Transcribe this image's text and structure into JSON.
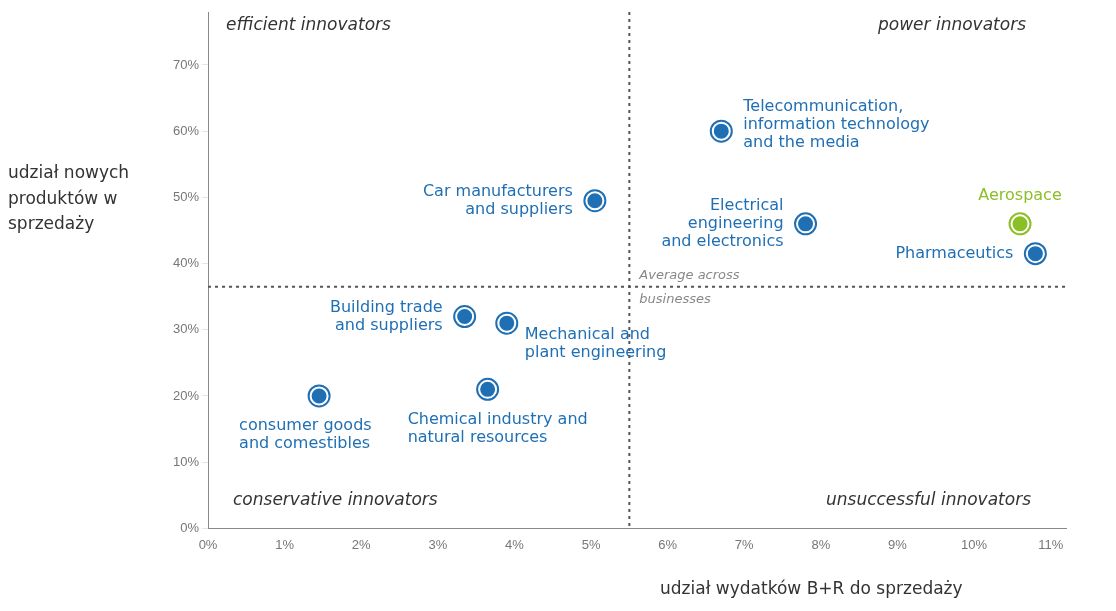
{
  "chart_data": {
    "type": "scatter",
    "xlabel": "udział wydatków B+R do sprzedaży",
    "ylabel": "udział nowych produktów w sprzedaży",
    "xlim": [
      0,
      11.2
    ],
    "ylim": [
      0,
      78
    ],
    "xticks": [
      {
        "value": 0,
        "label": "0%"
      },
      {
        "value": 1,
        "label": "1%"
      },
      {
        "value": 2,
        "label": "2%"
      },
      {
        "value": 3,
        "label": "3%"
      },
      {
        "value": 4,
        "label": "4%"
      },
      {
        "value": 5,
        "label": "5%"
      },
      {
        "value": 6,
        "label": "6%"
      },
      {
        "value": 7,
        "label": "7%"
      },
      {
        "value": 8,
        "label": "8%"
      },
      {
        "value": 9,
        "label": "9%"
      },
      {
        "value": 10,
        "label": "10%"
      },
      {
        "value": 11,
        "label": "11%"
      }
    ],
    "yticks": [
      {
        "value": 0,
        "label": "0%"
      },
      {
        "value": 10,
        "label": "10%"
      },
      {
        "value": 20,
        "label": "20%"
      },
      {
        "value": 30,
        "label": "30%"
      },
      {
        "value": 40,
        "label": "40%"
      },
      {
        "value": 50,
        "label": "50%"
      },
      {
        "value": 60,
        "label": "60%"
      },
      {
        "value": 70,
        "label": "70%"
      }
    ],
    "marker": "circle",
    "grid": false,
    "legend": false,
    "series": [
      {
        "name": "Telecommunication,\ninformation technology\nand the media",
        "color": "#1f6fb5",
        "x": [
          6.7
        ],
        "values": [
          60
        ]
      },
      {
        "name": "Car manufacturers\nand suppliers",
        "color": "#1f6fb5",
        "x": [
          5.05
        ],
        "values": [
          49.5
        ]
      },
      {
        "name": "Electrical\nengineering\nand electronics",
        "color": "#1f6fb5",
        "x": [
          7.8
        ],
        "values": [
          46
        ]
      },
      {
        "name": "Aerospace",
        "color": "#8cbf26",
        "x": [
          10.6
        ],
        "values": [
          46
        ]
      },
      {
        "name": "Pharmaceutics",
        "color": "#1f6fb5",
        "x": [
          10.8
        ],
        "values": [
          41.5
        ]
      },
      {
        "name": "Building trade\nand suppliers",
        "color": "#1f6fb5",
        "x": [
          3.35
        ],
        "values": [
          32
        ]
      },
      {
        "name": "Mechanical and\nplant engineering",
        "color": "#1f6fb5",
        "x": [
          3.9
        ],
        "values": [
          31
        ]
      },
      {
        "name": "Chemical industry and\nnatural resources",
        "color": "#1f6fb5",
        "x": [
          3.65
        ],
        "values": [
          21
        ]
      },
      {
        "name": "consumer goods\nand comestibles",
        "color": "#1f6fb5",
        "x": [
          1.45
        ],
        "values": [
          20
        ]
      }
    ],
    "ref_lines": [
      {
        "axis": "x",
        "value": 5.5,
        "line_style": "dotted",
        "color": "#555555"
      },
      {
        "axis": "y",
        "value": 36.5,
        "label": "Average across\nbusinesses",
        "line_style": "dotted",
        "color": "#555555"
      }
    ],
    "annotations": [
      "efficient innovators",
      "power innovators",
      "conservative innovators",
      "unsuccessful innovators"
    ]
  }
}
